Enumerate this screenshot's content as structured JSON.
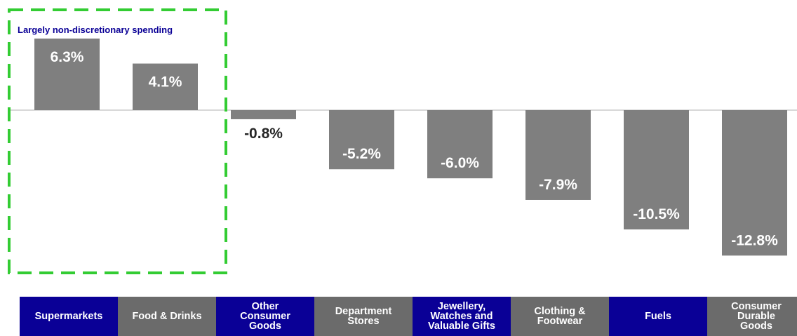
{
  "chart_data": {
    "type": "bar",
    "categories": [
      "Supermarkets",
      "Food & Drinks",
      "Other\nConsumer\nGoods",
      "Department\nStores",
      "Jewellery,\nWatches and\nValuable Gifts",
      "Clothing &\nFootwear",
      "Fuels",
      "Consumer\nDurable\nGoods"
    ],
    "values": [
      6.3,
      4.1,
      -0.8,
      -5.2,
      -6.0,
      -7.9,
      -10.5,
      -12.8
    ],
    "data_labels": [
      "6.3%",
      "4.1%",
      "-0.8%",
      "-5.2%",
      "-6.0%",
      "-7.9%",
      "-10.5%",
      "-12.8%"
    ],
    "annotation": "Largely non-discretionary spending",
    "ylim": [
      -14,
      9
    ],
    "grid": false,
    "legend": "none"
  },
  "colors": {
    "bar": "#7f7f7f",
    "bar_label_inside": "#ffffff",
    "bar_label_outside": "#262626",
    "category_box_dark": "#0a0096",
    "category_box_gray": "#6b6b6b",
    "highlight_dash": "#33cc33",
    "annotation_text": "#0a0096",
    "baseline": "#b0b0b0"
  }
}
